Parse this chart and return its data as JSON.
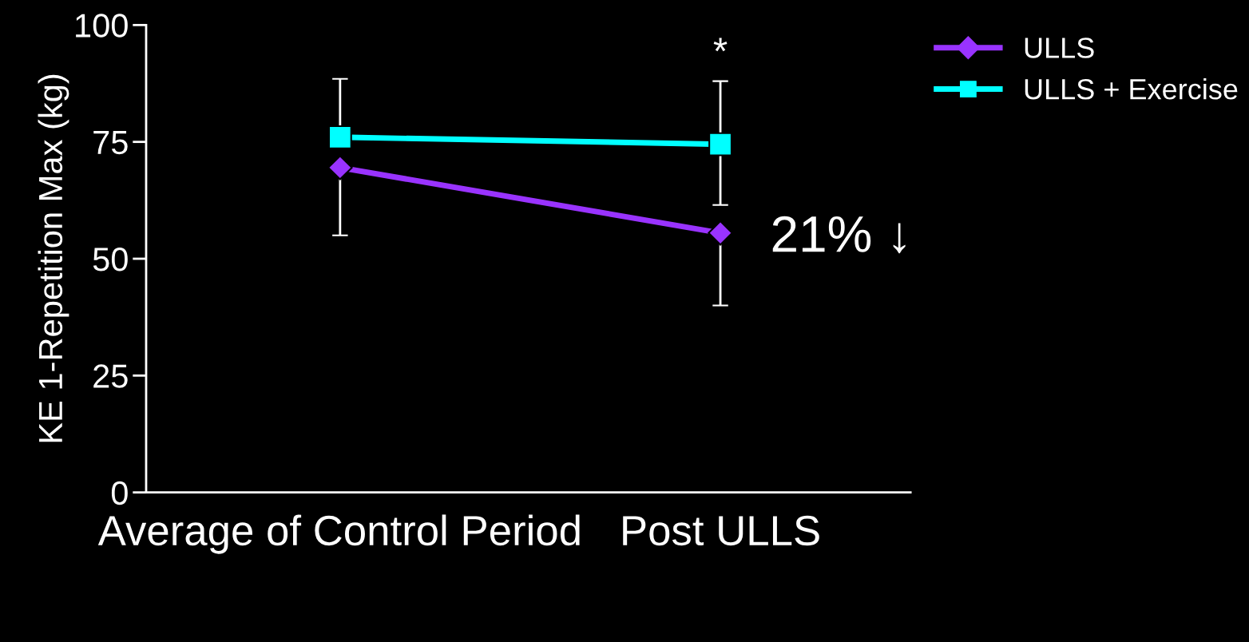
{
  "chart_data": {
    "type": "line",
    "ylabel": "KE 1-Repetition Max (kg)",
    "categories": [
      "Average of Control Period",
      "Post ULLS"
    ],
    "series": [
      {
        "name": "ULLS",
        "color": "#9933ff",
        "marker": "diamond",
        "values": [
          69.5,
          55.5
        ],
        "errors": [
          [
            55,
            69.5
          ],
          [
            40,
            55.5
          ]
        ]
      },
      {
        "name": "ULLS + Exercise",
        "color": "#00ffff",
        "marker": "square",
        "values": [
          76,
          74.5
        ],
        "errors": [
          [
            76,
            88.5
          ],
          [
            61.5,
            88
          ]
        ]
      }
    ],
    "ylim": [
      0,
      100
    ],
    "yticks": [
      0,
      25,
      50,
      75,
      100
    ],
    "grid": false,
    "legend": "top right",
    "line_style": "solid",
    "annotations": [
      "*",
      {
        "text": "21% ↓",
        "x": "Post ULLS",
        "y": 55.5
      }
    ]
  }
}
